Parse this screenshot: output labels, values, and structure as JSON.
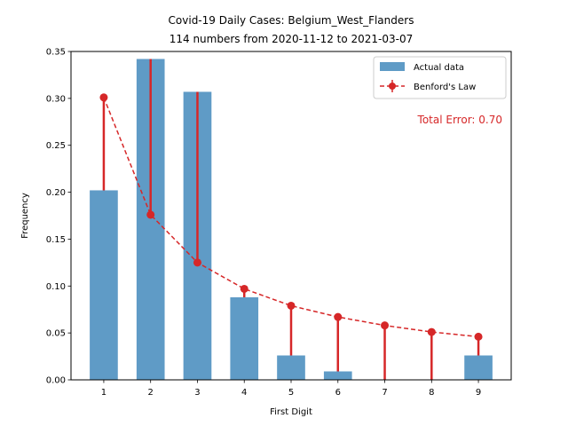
{
  "chart_data": {
    "type": "bar",
    "title": "Covid-19 Daily Cases: Belgium_West_Flanders",
    "subtitle": "114 numbers from 2020-11-12 to 2021-03-07",
    "xlabel": "First Digit",
    "ylabel": "Frequency",
    "categories": [
      1,
      2,
      3,
      4,
      5,
      6,
      7,
      8,
      9
    ],
    "x_tick_labels": [
      "1",
      "2",
      "3",
      "4",
      "5",
      "6",
      "7",
      "8",
      "9"
    ],
    "ylim": [
      0,
      0.35
    ],
    "y_ticks": [
      0.0,
      0.05,
      0.1,
      0.15,
      0.2,
      0.25,
      0.3,
      0.35
    ],
    "y_tick_labels": [
      "0.00",
      "0.05",
      "0.10",
      "0.15",
      "0.20",
      "0.25",
      "0.30",
      "0.35"
    ],
    "grid": false,
    "legend_position": "top-right",
    "series": [
      {
        "name": "Actual data",
        "type": "bar",
        "color": "#5f9bc6",
        "values": [
          0.202,
          0.342,
          0.307,
          0.088,
          0.026,
          0.009,
          0.0,
          0.0,
          0.026
        ]
      },
      {
        "name": "Benford's Law",
        "type": "line",
        "color": "#d62728",
        "values": [
          0.301,
          0.176,
          0.125,
          0.097,
          0.079,
          0.067,
          0.058,
          0.051,
          0.046
        ]
      }
    ],
    "annotation": {
      "text": "Total Error: 0.70",
      "color": "#d62728",
      "position": "top-right"
    }
  }
}
